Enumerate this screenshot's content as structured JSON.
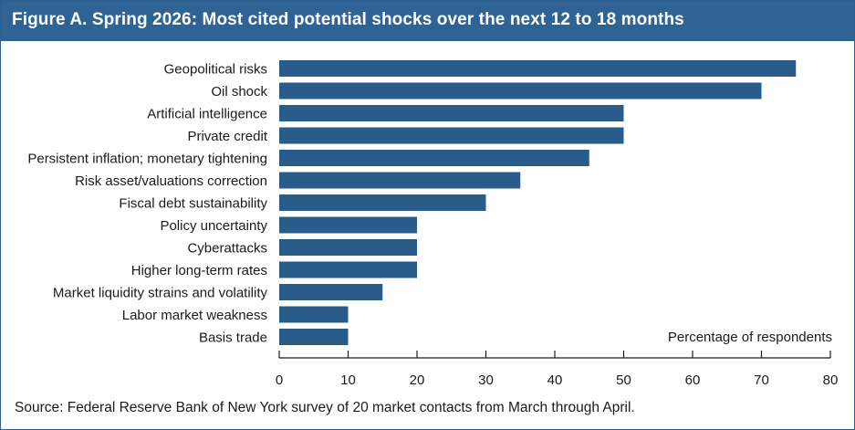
{
  "header": {
    "title": "Figure A. Spring 2026: Most cited potential shocks over the next 12 to 18 months"
  },
  "source": "Source: Federal Reserve Bank of New York survey of 20 market contacts from March through April.",
  "colors": {
    "header_bg": "#2e6393",
    "bar": "#2a5c8b",
    "axis": "#1a1a1a"
  },
  "chart_data": {
    "type": "bar",
    "orientation": "horizontal",
    "categories": [
      "Geopolitical risks",
      "Oil shock",
      "Artificial intelligence",
      "Private credit",
      "Persistent inflation; monetary tightening",
      "Risk asset/valuations correction",
      "Fiscal debt sustainability",
      "Policy uncertainty",
      "Cyberattacks",
      "Higher long-term rates",
      "Market liquidity strains and volatility",
      "Labor market weakness",
      "Basis trade"
    ],
    "values": [
      75,
      70,
      50,
      50,
      45,
      35,
      30,
      20,
      20,
      20,
      15,
      10,
      10
    ],
    "xlabel": "Percentage of respondents",
    "xlim": [
      0,
      80
    ],
    "xticks": [
      "0",
      "10",
      "20",
      "30",
      "40",
      "50",
      "60",
      "70",
      "80"
    ],
    "grid": false,
    "legend": false
  }
}
